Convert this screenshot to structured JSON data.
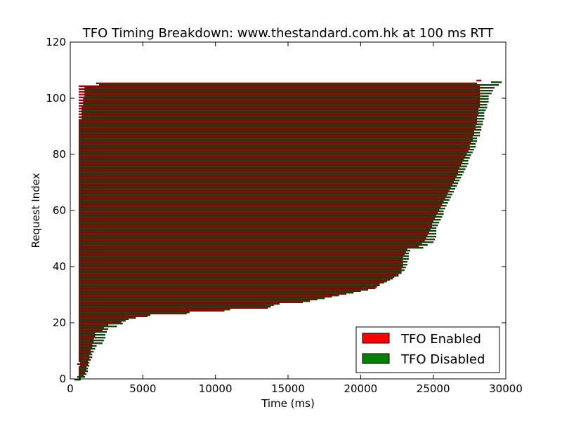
{
  "chart_data": {
    "type": "bar",
    "orientation": "horizontal",
    "title": "TFO Timing Breakdown: www.thestandard.com.hk at 100 ms RTT",
    "xlabel": "Time (ms)",
    "ylabel": "Request Index",
    "xlim": [
      0,
      30000
    ],
    "ylim": [
      0,
      120
    ],
    "xticks": [
      "0",
      "5000",
      "10000",
      "15000",
      "20000",
      "25000",
      "30000"
    ],
    "yticks": [
      "0",
      "20",
      "40",
      "60",
      "80",
      "100",
      "120"
    ],
    "legend_position": "lower-right",
    "grid": false,
    "series": [
      {
        "name": "TFO Enabled",
        "color": "#ff0000",
        "bar_start_ms": [
          600,
          600,
          600,
          600,
          600,
          500,
          600,
          600,
          600,
          600,
          600,
          600,
          600,
          600,
          600,
          600,
          600,
          600,
          600,
          600,
          600,
          600,
          600,
          600,
          600,
          600,
          600,
          600,
          600,
          600,
          600,
          600,
          600,
          600,
          600,
          600,
          600,
          600,
          600,
          600,
          600,
          600,
          600,
          600,
          600,
          600,
          600,
          600,
          600,
          600,
          600,
          600,
          600,
          600,
          600,
          600,
          600,
          600,
          600,
          600,
          600,
          600,
          600,
          600,
          600,
          600,
          600,
          600,
          600,
          600,
          600,
          600,
          600,
          600,
          600,
          600,
          600,
          600,
          600,
          600,
          600,
          600,
          600,
          600,
          600,
          600,
          600,
          600,
          600,
          600,
          600,
          600,
          600,
          600,
          600,
          600,
          600,
          600,
          600,
          600,
          600,
          600,
          600,
          600,
          600,
          1800,
          28000
        ],
        "bar_end_ms": [
          700,
          900,
          1000,
          1100,
          1100,
          1200,
          1200,
          1300,
          1300,
          1400,
          1400,
          1500,
          1500,
          1600,
          1600,
          1700,
          1700,
          2200,
          2300,
          2600,
          3500,
          4000,
          5300,
          8000,
          10600,
          13600,
          14000,
          16000,
          17000,
          18000,
          19000,
          20000,
          21000,
          21300,
          21600,
          22000,
          22300,
          22600,
          22800,
          22800,
          22900,
          22900,
          22900,
          22900,
          23000,
          23100,
          23200,
          24000,
          24200,
          24400,
          24500,
          24600,
          24700,
          24800,
          24900,
          24900,
          25000,
          25100,
          25200,
          25300,
          25400,
          25500,
          25600,
          25700,
          25800,
          25900,
          26000,
          26100,
          26200,
          26300,
          26400,
          26500,
          26600,
          26700,
          26700,
          26800,
          26900,
          27000,
          27100,
          27200,
          27300,
          27400,
          27500,
          27500,
          27600,
          27700,
          27700,
          27800,
          27800,
          27900,
          27900,
          28000,
          28000,
          28000,
          28100,
          28100,
          28100,
          28200,
          28200,
          28200,
          28200,
          28200,
          28200,
          28200,
          28200,
          28000,
          28300
        ]
      },
      {
        "name": "TFO Disabled",
        "color": "#008000",
        "bar_start_ms": [
          300,
          500,
          600,
          600,
          600,
          700,
          700,
          600,
          600,
          600,
          600,
          600,
          600,
          600,
          600,
          600,
          600,
          600,
          600,
          600,
          600,
          600,
          600,
          600,
          600,
          600,
          600,
          600,
          600,
          600,
          600,
          600,
          600,
          600,
          600,
          600,
          600,
          600,
          600,
          600,
          600,
          600,
          600,
          600,
          600,
          600,
          600,
          600,
          600,
          600,
          600,
          600,
          600,
          600,
          600,
          600,
          600,
          600,
          600,
          600,
          600,
          600,
          600,
          600,
          600,
          600,
          600,
          600,
          600,
          600,
          600,
          600,
          600,
          600,
          600,
          600,
          600,
          600,
          600,
          600,
          600,
          600,
          600,
          600,
          600,
          600,
          600,
          600,
          600,
          600,
          600,
          600,
          600,
          800,
          800,
          800,
          800,
          800,
          900,
          900,
          900,
          1000,
          1000,
          1000,
          1000,
          2000,
          29000
        ],
        "bar_end_ms": [
          700,
          1000,
          1100,
          1200,
          1200,
          1300,
          1300,
          1400,
          1500,
          1500,
          1600,
          1700,
          1800,
          2200,
          2300,
          2400,
          2400,
          2500,
          2600,
          3200,
          3600,
          3800,
          4500,
          5500,
          8200,
          11000,
          13800,
          14400,
          16500,
          17500,
          18500,
          19500,
          20500,
          21100,
          21300,
          21800,
          22200,
          22600,
          22800,
          23000,
          23100,
          23200,
          23200,
          23300,
          23300,
          23300,
          23400,
          24300,
          24600,
          25000,
          25100,
          25200,
          25200,
          25200,
          25200,
          25300,
          25400,
          25500,
          25600,
          25700,
          25700,
          25800,
          25900,
          26000,
          26100,
          26200,
          26300,
          26400,
          26500,
          26600,
          26700,
          26800,
          26900,
          27000,
          27100,
          27200,
          27300,
          27400,
          27400,
          27500,
          27600,
          27700,
          27800,
          27900,
          27900,
          28000,
          28000,
          28200,
          28200,
          28300,
          28300,
          28400,
          28400,
          28500,
          28500,
          28500,
          28600,
          28700,
          28700,
          28800,
          28800,
          28800,
          29000,
          29100,
          29200,
          29500,
          29700
        ]
      }
    ]
  }
}
